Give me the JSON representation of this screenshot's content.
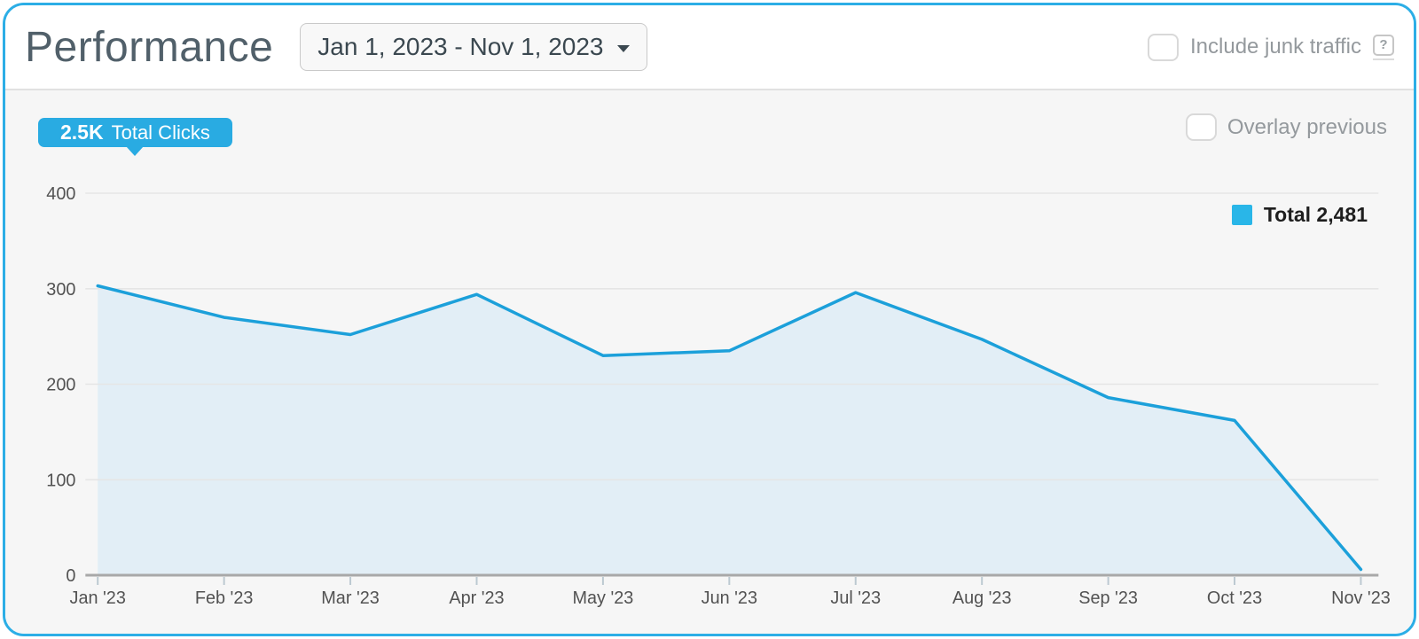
{
  "header": {
    "title": "Performance",
    "date_range": "Jan 1, 2023 - Nov 1, 2023",
    "include_junk_label": "Include junk traffic",
    "help_label": "?"
  },
  "chart": {
    "badge": {
      "value": "2.5K",
      "label": "Total Clicks"
    },
    "overlay_label": "Overlay previous",
    "legend": {
      "label": "Total 2,481",
      "swatch_color": "#29b6e8"
    }
  },
  "colors": {
    "card_border": "#2caee6",
    "badge_blue": "#29abe2",
    "line_blue": "#1ca0da",
    "area_fill": "#e2eef6",
    "chart_background": "#f6f6f6",
    "axis_text": "#525252"
  },
  "chart_data": {
    "type": "area",
    "title": "",
    "xlabel": "",
    "ylabel": "",
    "x": [
      "Jan '23",
      "Feb '23",
      "Mar '23",
      "Apr '23",
      "May '23",
      "Jun '23",
      "Jul '23",
      "Aug '23",
      "Sep '23",
      "Oct '23",
      "Nov '23"
    ],
    "series": [
      {
        "name": "Total",
        "total": 2481,
        "values": [
          303,
          270,
          252,
          294,
          230,
          235,
          296,
          247,
          186,
          162,
          6
        ],
        "color": "#1ca0da",
        "fill": "#e2eef6"
      }
    ],
    "ylim": [
      0,
      400
    ],
    "y_ticks": [
      0,
      100,
      200,
      300,
      400
    ],
    "grid": true,
    "legend_position": "top-right"
  }
}
